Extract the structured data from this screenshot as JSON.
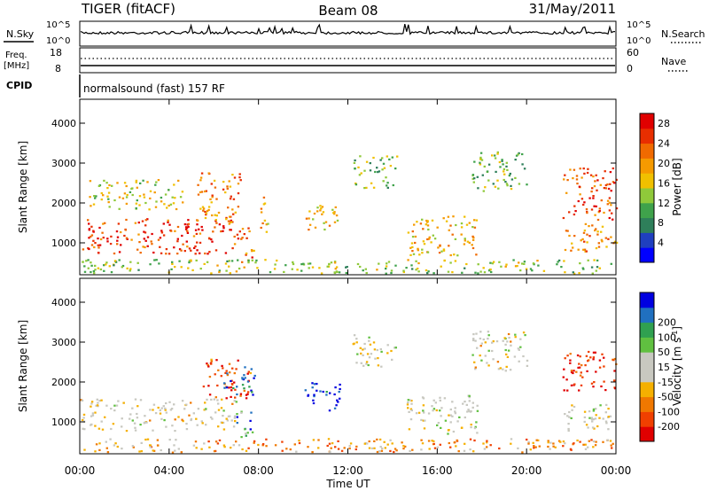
{
  "header": {
    "radar": "TIGER (fitACF)",
    "beam": "Beam 08",
    "date": "31/May/2011"
  },
  "top_panels": {
    "nsky_label": "N.Sky",
    "nsearch_label": "N.Search",
    "noise_ticks": [
      "10^5",
      "10^0"
    ],
    "freq_label": "Freq.",
    "freq_unit": "[MHz]",
    "freq_ticks": [
      "18",
      "8"
    ],
    "nave_ticks": [
      "60",
      "0"
    ],
    "nave_label": "Nave",
    "cpid_label": "CPID",
    "cpid_value": "normalsound (fast) 157 RF"
  },
  "chart_data": [
    {
      "type": "heatmap",
      "name": "power",
      "ylabel": "Slant Range [km]",
      "y_ticks": [
        1000,
        2000,
        3000,
        4000
      ],
      "ylim": [
        200,
        4600
      ],
      "x_ticks": [
        "00:00",
        "04:00",
        "08:00",
        "12:00",
        "16:00",
        "20:00",
        "00:00"
      ],
      "xlim_hours": [
        0,
        24
      ],
      "colorbar": {
        "label": "Power [dB]",
        "ticks": [
          4,
          8,
          12,
          16,
          20,
          24,
          28
        ],
        "range": [
          0,
          30
        ],
        "colors": [
          "#0000ff",
          "#1f3fbf",
          "#2e7f5a",
          "#3fa24b",
          "#8fc93a",
          "#f0c000",
          "#f59a00",
          "#f06a00",
          "#e82e00",
          "#e00000"
        ]
      },
      "regions": [
        {
          "t": [
            0.1,
            7.0
          ],
          "r": [
            750,
            1650
          ],
          "level": 0.85
        },
        {
          "t": [
            0.4,
            4.6
          ],
          "r": [
            1850,
            2600
          ],
          "level": 0.5
        },
        {
          "t": [
            5.2,
            7.2
          ],
          "r": [
            1500,
            2800
          ],
          "level": 0.7
        },
        {
          "t": [
            7.0,
            7.8
          ],
          "r": [
            500,
            1400
          ],
          "level": 0.75
        },
        {
          "t": [
            8.0,
            8.4
          ],
          "r": [
            1100,
            2200
          ],
          "level": 0.6
        },
        {
          "t": [
            10.0,
            11.6
          ],
          "r": [
            1300,
            2000
          ],
          "level": 0.55
        },
        {
          "t": [
            12.2,
            14.2
          ],
          "r": [
            2400,
            3200
          ],
          "level": 0.4
        },
        {
          "t": [
            14.6,
            17.8
          ],
          "r": [
            700,
            1700
          ],
          "level": 0.6
        },
        {
          "t": [
            17.5,
            20.0
          ],
          "r": [
            2300,
            3300
          ],
          "level": 0.4
        },
        {
          "t": [
            21.6,
            24.0
          ],
          "r": [
            1600,
            2900
          ],
          "level": 0.8
        },
        {
          "t": [
            21.6,
            24.0
          ],
          "r": [
            800,
            1500
          ],
          "level": 0.7
        },
        {
          "t": [
            0.0,
            24.0
          ],
          "r": [
            250,
            600
          ],
          "level": 0.45
        }
      ]
    },
    {
      "type": "heatmap",
      "name": "velocity",
      "ylabel": "Slant Range [km]",
      "y_ticks": [
        1000,
        2000,
        3000,
        4000
      ],
      "ylim": [
        200,
        4600
      ],
      "x_ticks": [
        "00:00",
        "04:00",
        "08:00",
        "12:00",
        "16:00",
        "20:00",
        "00:00"
      ],
      "xlim_hours": [
        0,
        24
      ],
      "xlabel": "Time UT",
      "colorbar": {
        "label": "Velocity [m s",
        "label_sup": "-1",
        "label_end": "]",
        "ticks": [
          -200,
          -100,
          -50,
          -15,
          15,
          50,
          100,
          200
        ],
        "colors": [
          "#e00000",
          "#f04000",
          "#f07800",
          "#f5b000",
          "#c8c8c0",
          "#c8c8c0",
          "#60c040",
          "#30a050",
          "#2070c0",
          "#0000e0"
        ]
      },
      "regions": [
        {
          "t": [
            0.0,
            7.0
          ],
          "r": [
            800,
            1600
          ],
          "level": 0.45
        },
        {
          "t": [
            5.5,
            7.6
          ],
          "r": [
            1600,
            2600
          ],
          "level": 0.15
        },
        {
          "t": [
            6.4,
            7.8
          ],
          "r": [
            1700,
            2400
          ],
          "level": 0.9
        },
        {
          "t": [
            7.0,
            7.8
          ],
          "r": [
            600,
            1300
          ],
          "level": 0.75
        },
        {
          "t": [
            10.0,
            11.6
          ],
          "r": [
            1300,
            2000
          ],
          "level": 0.95
        },
        {
          "t": [
            12.2,
            14.2
          ],
          "r": [
            2400,
            3200
          ],
          "level": 0.48
        },
        {
          "t": [
            14.6,
            17.8
          ],
          "r": [
            700,
            1700
          ],
          "level": 0.5
        },
        {
          "t": [
            17.5,
            20.0
          ],
          "r": [
            2300,
            3300
          ],
          "level": 0.45
        },
        {
          "t": [
            21.6,
            24.0
          ],
          "r": [
            1800,
            2800
          ],
          "level": 0.1
        },
        {
          "t": [
            21.6,
            24.0
          ],
          "r": [
            800,
            1500
          ],
          "level": 0.5
        },
        {
          "t": [
            0.0,
            24.0
          ],
          "r": [
            250,
            600
          ],
          "level": 0.3
        }
      ]
    }
  ]
}
